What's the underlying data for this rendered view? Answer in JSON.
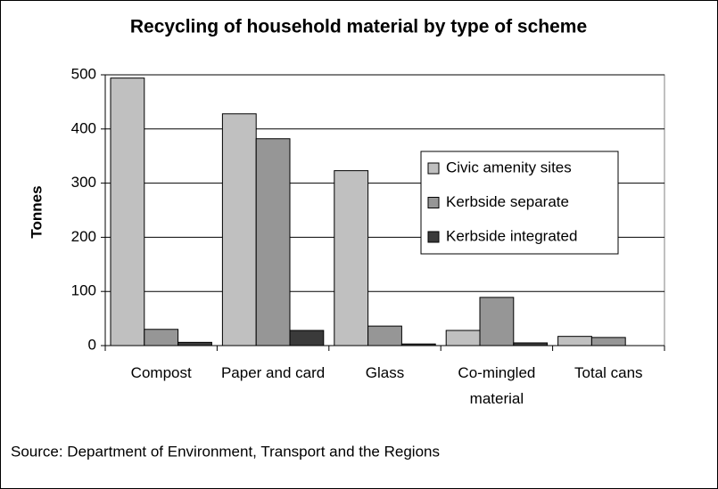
{
  "chart_data": {
    "type": "bar",
    "title": "Recycling of household material by type of scheme",
    "y_label": "Tonnes",
    "source": "Source: Department of Environment, Transport and the Regions",
    "categories": [
      "Compost",
      "Paper and card",
      "Glass",
      "Co-mingled material",
      "Total cans"
    ],
    "series": [
      {
        "name": "Civic amenity sites",
        "color": "#c0c0c0",
        "values": [
          494,
          428,
          323,
          28,
          17
        ]
      },
      {
        "name": "Kerbside separate",
        "color": "#969696",
        "values": [
          30,
          382,
          36,
          89,
          15
        ]
      },
      {
        "name": "Kerbside integrated",
        "color": "#3a3a3a",
        "values": [
          6,
          28,
          3,
          5,
          null
        ]
      }
    ],
    "ylim": [
      0,
      500
    ],
    "yticks": [
      0,
      100,
      200,
      300,
      400,
      500
    ],
    "grid": true,
    "legend": "right"
  }
}
